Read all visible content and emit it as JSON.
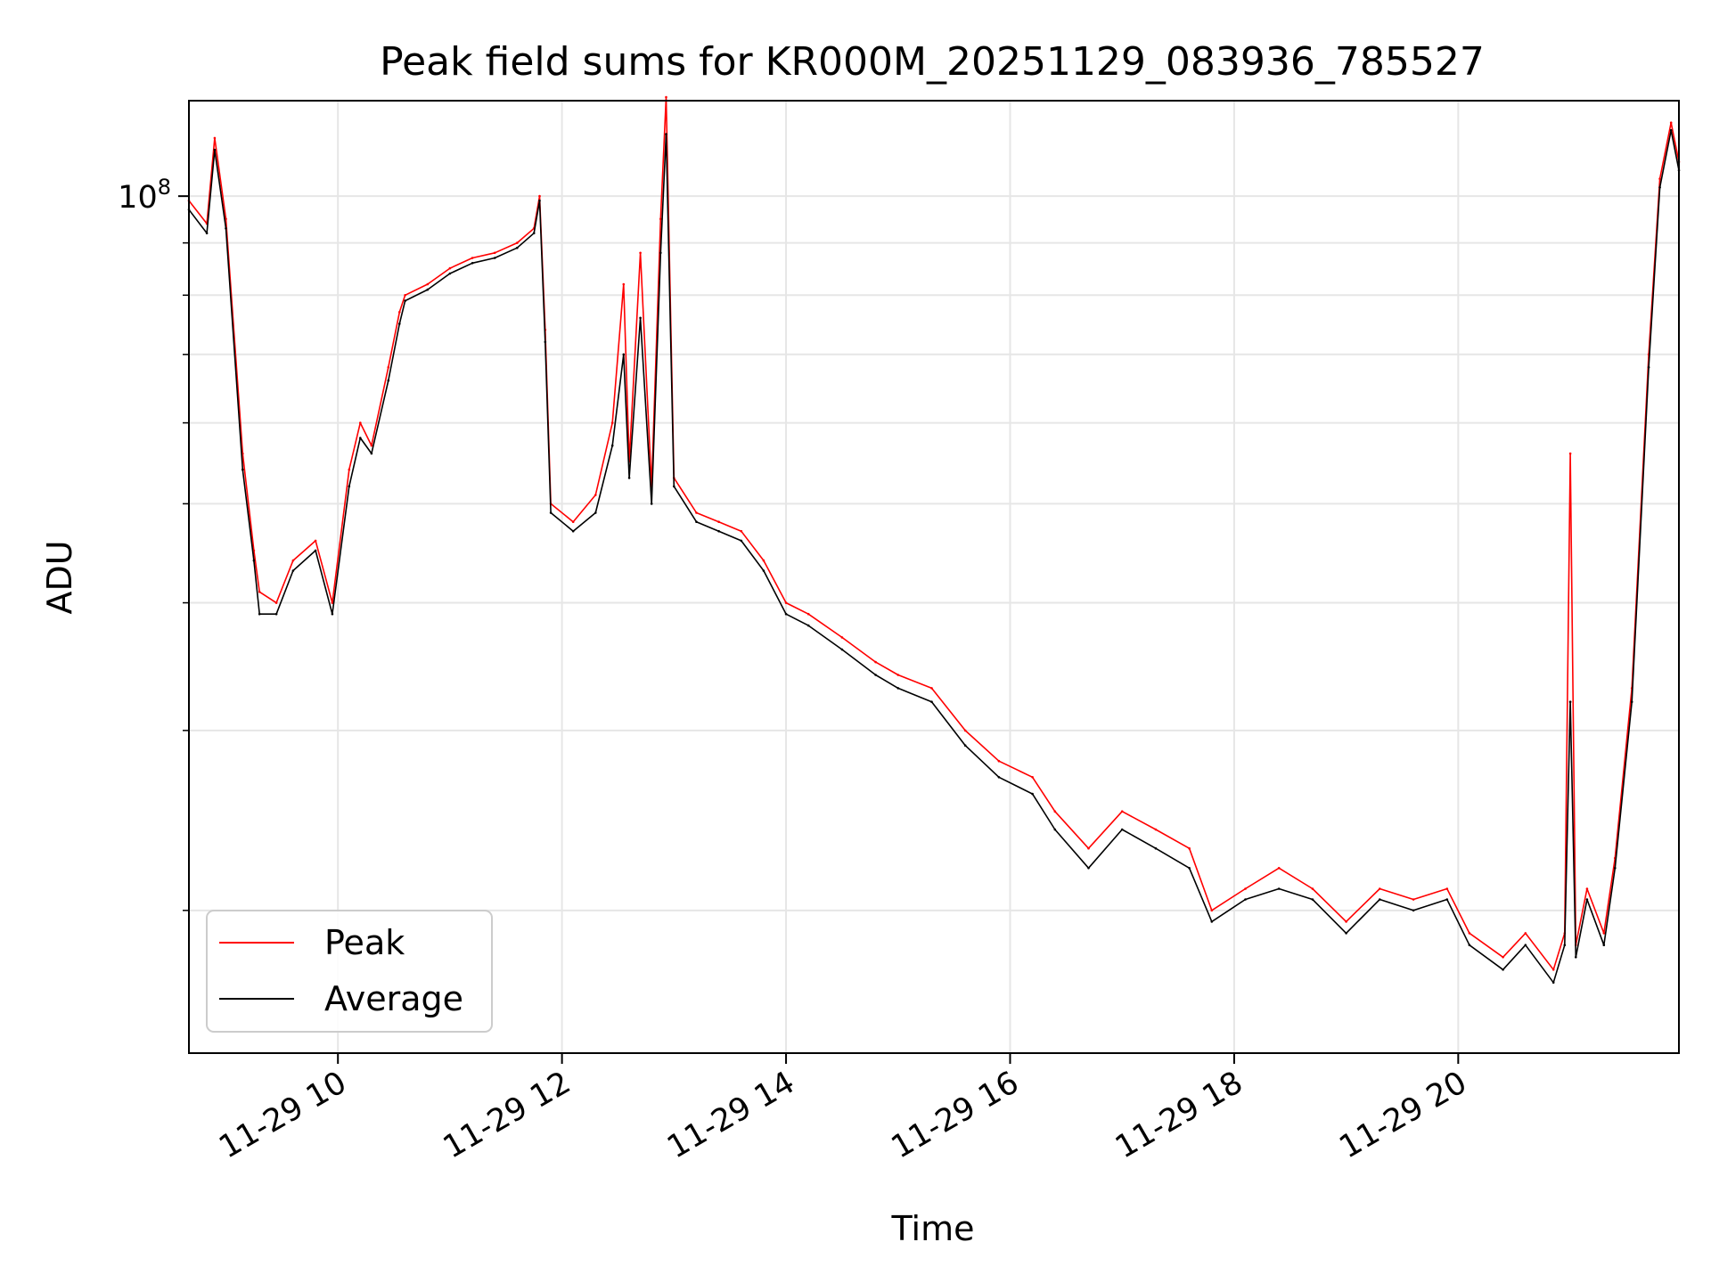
{
  "chart_data": {
    "type": "line",
    "title": "Peak field sums for KR000M_20251129_083936_785527",
    "xlabel": "Time",
    "ylabel": "ADU",
    "yscale": "log",
    "ylim": [
      14500000,
      124000000
    ],
    "xlim": [
      8.67,
      21.97
    ],
    "x_ticks": [
      10,
      12,
      14,
      16,
      18,
      20
    ],
    "x_tick_labels": [
      "11-29 10",
      "11-29 12",
      "11-29 14",
      "11-29 16",
      "11-29 18",
      "11-29 20"
    ],
    "y_major_ticks": [
      100000000
    ],
    "y_major_tick_labels": [
      {
        "base": "10",
        "exp": "8"
      }
    ],
    "y_minor_ticks": [
      20000000,
      30000000,
      40000000,
      50000000,
      60000000,
      70000000,
      80000000,
      90000000
    ],
    "grid": true,
    "legend_position": "lower-left",
    "colors": {
      "peak": "#ff0000",
      "average": "#000000",
      "grid": "#e6e6e6"
    },
    "series": [
      {
        "name": "Peak",
        "x": [
          8.67,
          8.83,
          8.9,
          9.0,
          9.15,
          9.25,
          9.3,
          9.45,
          9.6,
          9.8,
          9.95,
          10.1,
          10.2,
          10.3,
          10.45,
          10.55,
          10.6,
          10.8,
          11.0,
          11.2,
          11.4,
          11.6,
          11.75,
          11.8,
          11.85,
          11.9,
          12.1,
          12.3,
          12.45,
          12.55,
          12.6,
          12.7,
          12.8,
          12.88,
          12.93,
          13.0,
          13.2,
          13.4,
          13.6,
          13.8,
          14.0,
          14.2,
          14.5,
          14.8,
          15.0,
          15.3,
          15.6,
          15.9,
          16.2,
          16.4,
          16.7,
          17.0,
          17.3,
          17.6,
          17.8,
          18.1,
          18.4,
          18.7,
          19.0,
          19.3,
          19.6,
          19.9,
          20.1,
          20.4,
          20.6,
          20.85,
          20.95,
          21.0,
          21.05,
          21.15,
          21.3,
          21.4,
          21.55,
          21.7,
          21.8,
          21.9,
          21.97
        ],
        "values": [
          99000000,
          94000000,
          114000000,
          95000000,
          56000000,
          45000000,
          41000000,
          40000000,
          44000000,
          46000000,
          40000000,
          54000000,
          60000000,
          57000000,
          68000000,
          77000000,
          80000000,
          82000000,
          85000000,
          87000000,
          88000000,
          90000000,
          93000000,
          100000000,
          74000000,
          50000000,
          48000000,
          51000000,
          60000000,
          82000000,
          55000000,
          88000000,
          52000000,
          95000000,
          125000000,
          53000000,
          49000000,
          48000000,
          47000000,
          44000000,
          40000000,
          39000000,
          37000000,
          35000000,
          34000000,
          33000000,
          30000000,
          28000000,
          27000000,
          25000000,
          23000000,
          25000000,
          24000000,
          23000000,
          20000000,
          21000000,
          22000000,
          21000000,
          19500000,
          21000000,
          20500000,
          21000000,
          19000000,
          18000000,
          19000000,
          17500000,
          19000000,
          56000000,
          18500000,
          21000000,
          19000000,
          22500000,
          33000000,
          70000000,
          104000000,
          118000000,
          108000000
        ]
      },
      {
        "name": "Average",
        "x": [
          8.67,
          8.83,
          8.9,
          9.0,
          9.15,
          9.25,
          9.3,
          9.45,
          9.6,
          9.8,
          9.95,
          10.1,
          10.2,
          10.3,
          10.45,
          10.55,
          10.6,
          10.8,
          11.0,
          11.2,
          11.4,
          11.6,
          11.75,
          11.8,
          11.85,
          11.9,
          12.1,
          12.3,
          12.45,
          12.55,
          12.6,
          12.7,
          12.8,
          12.88,
          12.93,
          13.0,
          13.2,
          13.4,
          13.6,
          13.8,
          14.0,
          14.2,
          14.5,
          14.8,
          15.0,
          15.3,
          15.6,
          15.9,
          16.2,
          16.4,
          16.7,
          17.0,
          17.3,
          17.6,
          17.8,
          18.1,
          18.4,
          18.7,
          19.0,
          19.3,
          19.6,
          19.9,
          20.1,
          20.4,
          20.6,
          20.85,
          20.95,
          21.0,
          21.05,
          21.15,
          21.3,
          21.4,
          21.55,
          21.7,
          21.8,
          21.9,
          21.97
        ],
        "values": [
          97000000,
          92000000,
          111000000,
          93000000,
          54000000,
          44000000,
          39000000,
          39000000,
          43000000,
          45000000,
          39000000,
          52000000,
          58000000,
          56000000,
          66000000,
          75000000,
          79000000,
          81000000,
          84000000,
          86000000,
          87000000,
          89000000,
          92000000,
          99000000,
          72000000,
          49000000,
          47000000,
          49000000,
          57000000,
          70000000,
          53000000,
          76000000,
          50000000,
          88000000,
          115000000,
          52000000,
          48000000,
          47000000,
          46000000,
          43000000,
          39000000,
          38000000,
          36000000,
          34000000,
          33000000,
          32000000,
          29000000,
          27000000,
          26000000,
          24000000,
          22000000,
          24000000,
          23000000,
          22000000,
          19500000,
          20500000,
          21000000,
          20500000,
          19000000,
          20500000,
          20000000,
          20500000,
          18500000,
          17500000,
          18500000,
          17000000,
          18500000,
          32000000,
          18000000,
          20500000,
          18500000,
          22000000,
          32000000,
          68000000,
          102000000,
          116000000,
          106000000
        ]
      }
    ]
  }
}
